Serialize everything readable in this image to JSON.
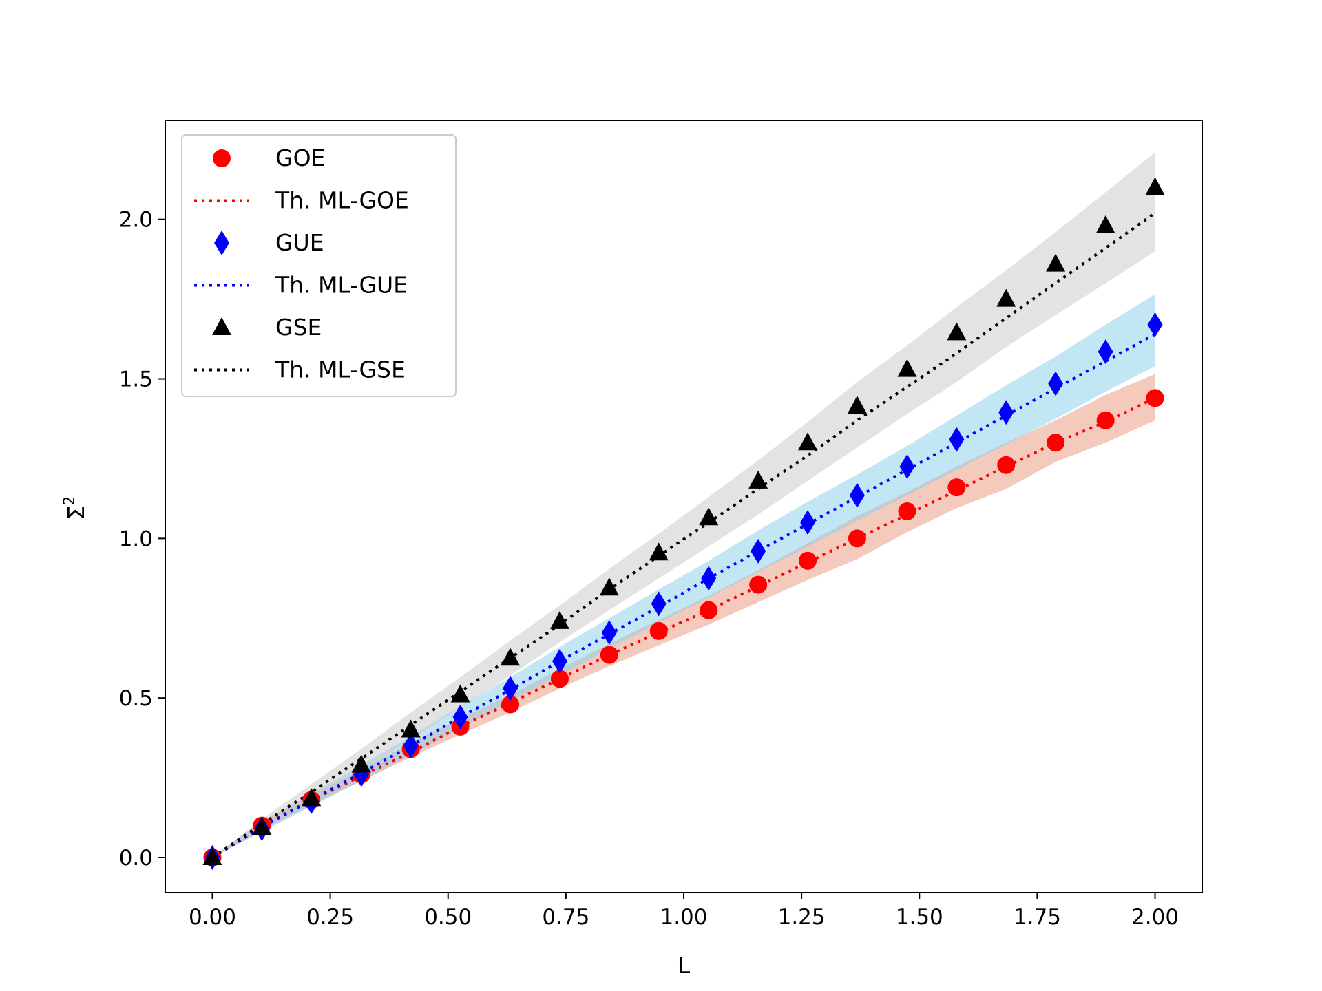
{
  "chart_data": {
    "type": "scatter",
    "xlabel": "L",
    "ylabel": "Σ",
    "ylabel_sup": "2",
    "xlim": [
      -0.1,
      2.1
    ],
    "ylim": [
      -0.11,
      2.31
    ],
    "xticks": [
      0.0,
      0.25,
      0.5,
      0.75,
      1.0,
      1.25,
      1.5,
      1.75,
      2.0
    ],
    "xtick_labels": [
      "0.00",
      "0.25",
      "0.50",
      "0.75",
      "1.00",
      "1.25",
      "1.50",
      "1.75",
      "2.00"
    ],
    "yticks": [
      0.0,
      0.5,
      1.0,
      1.5,
      2.0
    ],
    "ytick_labels": [
      "0.0",
      "0.5",
      "1.0",
      "1.5",
      "2.0"
    ],
    "legend_position": "top-left",
    "x": [
      0.0,
      0.105,
      0.21,
      0.316,
      0.421,
      0.526,
      0.632,
      0.737,
      0.842,
      0.947,
      1.053,
      1.158,
      1.263,
      1.368,
      1.474,
      1.579,
      1.684,
      1.789,
      1.895,
      2.0
    ],
    "series": [
      {
        "name": "GOE",
        "theory_name": "Th. ML-GOE",
        "marker": "circle",
        "color": "#ff0000",
        "band_color": "#e9967a",
        "values": [
          0.0,
          0.1,
          0.18,
          0.26,
          0.34,
          0.41,
          0.48,
          0.56,
          0.635,
          0.71,
          0.775,
          0.855,
          0.93,
          1.0,
          1.085,
          1.16,
          1.23,
          1.3,
          1.37,
          1.44
        ],
        "theory": [
          0.0,
          0.1,
          0.18,
          0.255,
          0.33,
          0.41,
          0.485,
          0.56,
          0.635,
          0.705,
          0.775,
          0.85,
          0.925,
          1.0,
          1.075,
          1.15,
          1.225,
          1.3,
          1.365,
          1.44
        ],
        "band_lower": [
          0.0,
          0.085,
          0.165,
          0.24,
          0.315,
          0.385,
          0.455,
          0.53,
          0.6,
          0.665,
          0.73,
          0.8,
          0.87,
          0.935,
          1.02,
          1.095,
          1.155,
          1.24,
          1.3,
          1.37
        ],
        "band_upper": [
          0.0,
          0.115,
          0.195,
          0.275,
          0.36,
          0.435,
          0.51,
          0.59,
          0.67,
          0.745,
          0.82,
          0.9,
          0.985,
          1.07,
          1.145,
          1.225,
          1.3,
          1.37,
          1.45,
          1.515
        ]
      },
      {
        "name": "GUE",
        "theory_name": "Th. ML-GUE",
        "marker": "diamond",
        "color": "#0000ff",
        "band_color": "#87ceeb",
        "values": [
          0.0,
          0.09,
          0.175,
          0.26,
          0.35,
          0.44,
          0.53,
          0.615,
          0.705,
          0.795,
          0.875,
          0.96,
          1.05,
          1.135,
          1.225,
          1.31,
          1.395,
          1.485,
          1.585,
          1.67
        ],
        "theory": [
          0.0,
          0.095,
          0.18,
          0.265,
          0.35,
          0.44,
          0.525,
          0.615,
          0.7,
          0.785,
          0.875,
          0.96,
          1.045,
          1.13,
          1.215,
          1.3,
          1.385,
          1.47,
          1.555,
          1.64
        ],
        "band_lower": [
          0.0,
          0.08,
          0.16,
          0.24,
          0.32,
          0.405,
          0.49,
          0.57,
          0.655,
          0.735,
          0.815,
          0.895,
          0.975,
          1.055,
          1.135,
          1.215,
          1.295,
          1.375,
          1.46,
          1.54
        ],
        "band_upper": [
          0.0,
          0.11,
          0.2,
          0.29,
          0.38,
          0.475,
          0.565,
          0.66,
          0.75,
          0.84,
          0.93,
          1.025,
          1.115,
          1.2,
          1.29,
          1.385,
          1.48,
          1.57,
          1.67,
          1.765
        ]
      },
      {
        "name": "GSE",
        "theory_name": "Th. ML-GSE",
        "marker": "triangle",
        "color": "#000000",
        "band_color": "#c8c8c8",
        "values": [
          0.0,
          0.095,
          0.185,
          0.29,
          0.4,
          0.51,
          0.625,
          0.74,
          0.845,
          0.955,
          1.065,
          1.18,
          1.3,
          1.415,
          1.53,
          1.645,
          1.75,
          1.86,
          1.98,
          2.1
        ],
        "theory": [
          0.0,
          0.105,
          0.205,
          0.31,
          0.415,
          0.52,
          0.625,
          0.73,
          0.84,
          0.945,
          1.05,
          1.155,
          1.26,
          1.37,
          1.475,
          1.58,
          1.69,
          1.8,
          1.91,
          2.02
        ],
        "band_lower": [
          0.0,
          0.085,
          0.175,
          0.27,
          0.37,
          0.47,
          0.57,
          0.675,
          0.775,
          0.875,
          0.975,
          1.075,
          1.18,
          1.285,
          1.39,
          1.49,
          1.6,
          1.7,
          1.8,
          1.9
        ],
        "band_upper": [
          0.0,
          0.12,
          0.23,
          0.34,
          0.455,
          0.565,
          0.68,
          0.79,
          0.905,
          1.015,
          1.13,
          1.245,
          1.365,
          1.49,
          1.605,
          1.725,
          1.84,
          1.96,
          2.085,
          2.21
        ]
      }
    ]
  }
}
